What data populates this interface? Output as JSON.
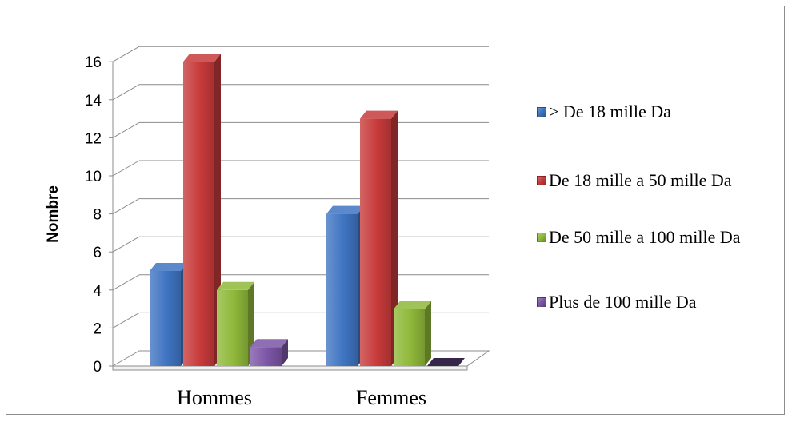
{
  "chart_data": {
    "type": "bar",
    "categories": [
      "Hommes",
      "Femmes"
    ],
    "series": [
      {
        "name": "> De 18 mille Da",
        "values": [
          5,
          8
        ]
      },
      {
        "name": "De 18 mille a 50 mille Da",
        "values": [
          16,
          13
        ]
      },
      {
        "name": "De 50 mille a 100 mille Da",
        "values": [
          4,
          3
        ]
      },
      {
        "name": "Plus de 100 mille Da",
        "values": [
          1,
          0
        ]
      }
    ],
    "title": "",
    "xlabel": "",
    "ylabel": "Nombre",
    "ylim": [
      0,
      16
    ],
    "yticks": [
      "0",
      "2",
      "4",
      "6",
      "8",
      "10",
      "12",
      "14",
      "16"
    ],
    "grid": true,
    "legend_position": "right",
    "colors": [
      "#3f74c2",
      "#c73a3a",
      "#8fb83a",
      "#7b55a6"
    ],
    "style": "3d-clustered-column"
  }
}
